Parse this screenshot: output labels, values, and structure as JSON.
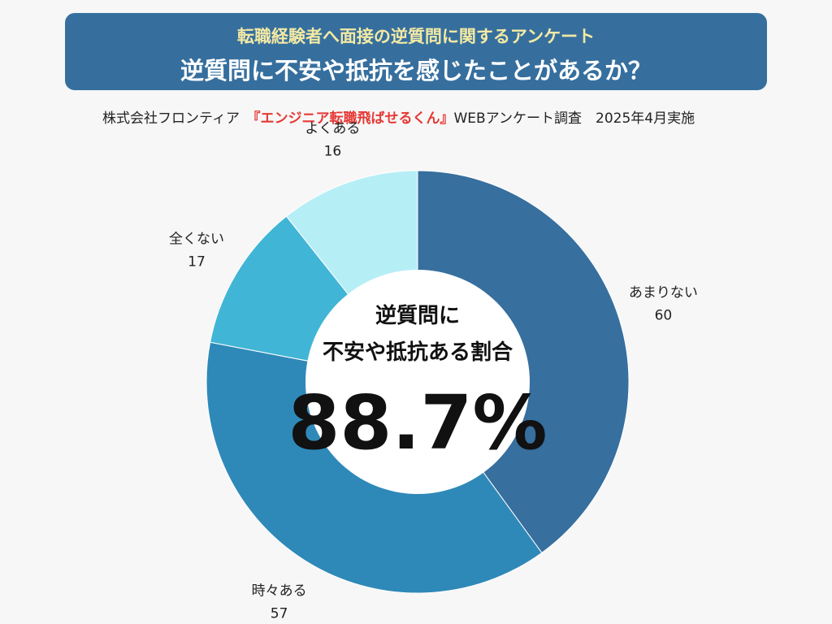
{
  "header": {
    "subtitle": "転職経験者へ面接の逆質問に関するアンケート",
    "title": "逆質問に不安や抵抗を感じたことがあるか？"
  },
  "source": {
    "company": "株式会社フロンティア　",
    "service": "『エンジニア転職飛ばせるくん』",
    "survey": "WEBアンケート調査　2025年4月実施",
    "accent_color": "#e53935"
  },
  "center": {
    "line1": "逆質問に",
    "line2": "不安や抵抗ある割合",
    "value": "88.7%"
  },
  "chart_data": {
    "type": "pie",
    "donut": true,
    "categories": [
      "あまりない",
      "時々ある",
      "全くない",
      "よくある"
    ],
    "values": [
      60,
      57,
      17,
      16
    ],
    "colors": [
      "#376f9e",
      "#2f89b8",
      "#41b5d6",
      "#b6eef6"
    ],
    "start": "top, clockwise"
  }
}
